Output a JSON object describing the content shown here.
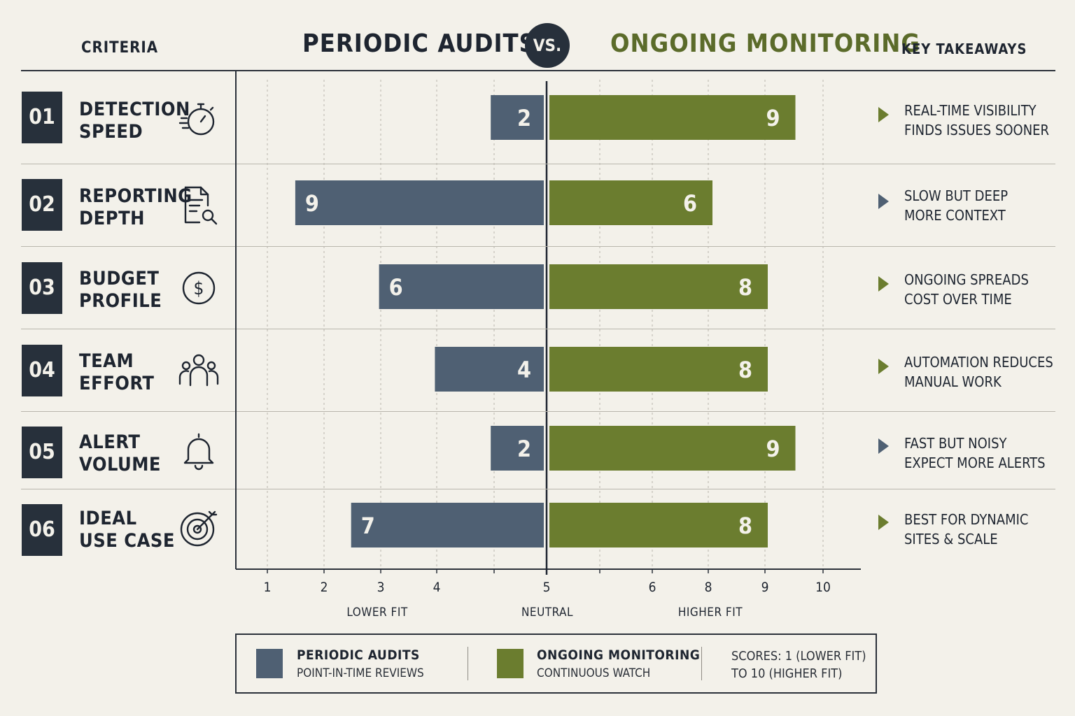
{
  "header": {
    "criteria": "CRITERIA",
    "left_title": "PERIODIC AUDITS",
    "vs": "VS.",
    "right_title": "ONGOING MONITORING",
    "takeaways": "KEY TAKEAWAYS"
  },
  "rows": [
    {
      "num": "01",
      "label": "DETECTION\nSPEED",
      "icon": "stopwatch-icon",
      "takeaway": "REAL-TIME VISIBILITY\nFINDS ISSUES SOONER",
      "arrow": "green"
    },
    {
      "num": "02",
      "label": "REPORTING\nDEPTH",
      "icon": "report-search-icon",
      "takeaway": "SLOW BUT DEEP\nMORE CONTEXT",
      "arrow": "blue"
    },
    {
      "num": "03",
      "label": "BUDGET\nPROFILE",
      "icon": "dollar-icon",
      "takeaway": "ONGOING SPREADS\nCOST OVER TIME",
      "arrow": "green"
    },
    {
      "num": "04",
      "label": "TEAM\nEFFORT",
      "icon": "team-icon",
      "takeaway": "AUTOMATION REDUCES\nMANUAL WORK",
      "arrow": "green"
    },
    {
      "num": "05",
      "label": "ALERT\nVOLUME",
      "icon": "bell-icon",
      "takeaway": "FAST BUT NOISY\nEXPECT MORE ALERTS",
      "arrow": "blue"
    },
    {
      "num": "06",
      "label": "IDEAL\nUSE CASE",
      "icon": "target-icon",
      "takeaway": "BEST FOR DYNAMIC\nSITES & SCALE",
      "arrow": "green"
    }
  ],
  "chart_data": {
    "type": "bar",
    "orientation": "diverging-horizontal",
    "categories": [
      "DETECTION SPEED",
      "REPORTING DEPTH",
      "BUDGET PROFILE",
      "TEAM EFFORT",
      "ALERT VOLUME",
      "IDEAL USE CASE"
    ],
    "series": [
      {
        "name": "PERIODIC AUDITS",
        "values": [
          2,
          9,
          6,
          4,
          2,
          7
        ],
        "color": "#4f6073"
      },
      {
        "name": "ONGOING MONITORING",
        "values": [
          9,
          6,
          8,
          8,
          9,
          8
        ],
        "color": "#6b7d2f"
      }
    ],
    "x_ticks": [
      "1",
      "2",
      "3",
      "4",
      "5",
      "6",
      "8",
      "9",
      "10"
    ],
    "scale_labels": [
      "LOWER FIT",
      "NEUTRAL",
      "HIGHER FIT"
    ],
    "grid": true,
    "legend_position": "bottom"
  },
  "legend": {
    "items": [
      {
        "title": "PERIODIC AUDITS",
        "subtitle": "POINT-IN-TIME REVIEWS",
        "color": "#4f6073"
      },
      {
        "title": "ONGOING MONITORING",
        "subtitle": "CONTINUOUS WATCH",
        "color": "#6b7d2f"
      }
    ],
    "note_line1": "SCORES: 1 (LOWER FIT)",
    "note_line2": "TO 10 (HIGHER FIT)"
  }
}
